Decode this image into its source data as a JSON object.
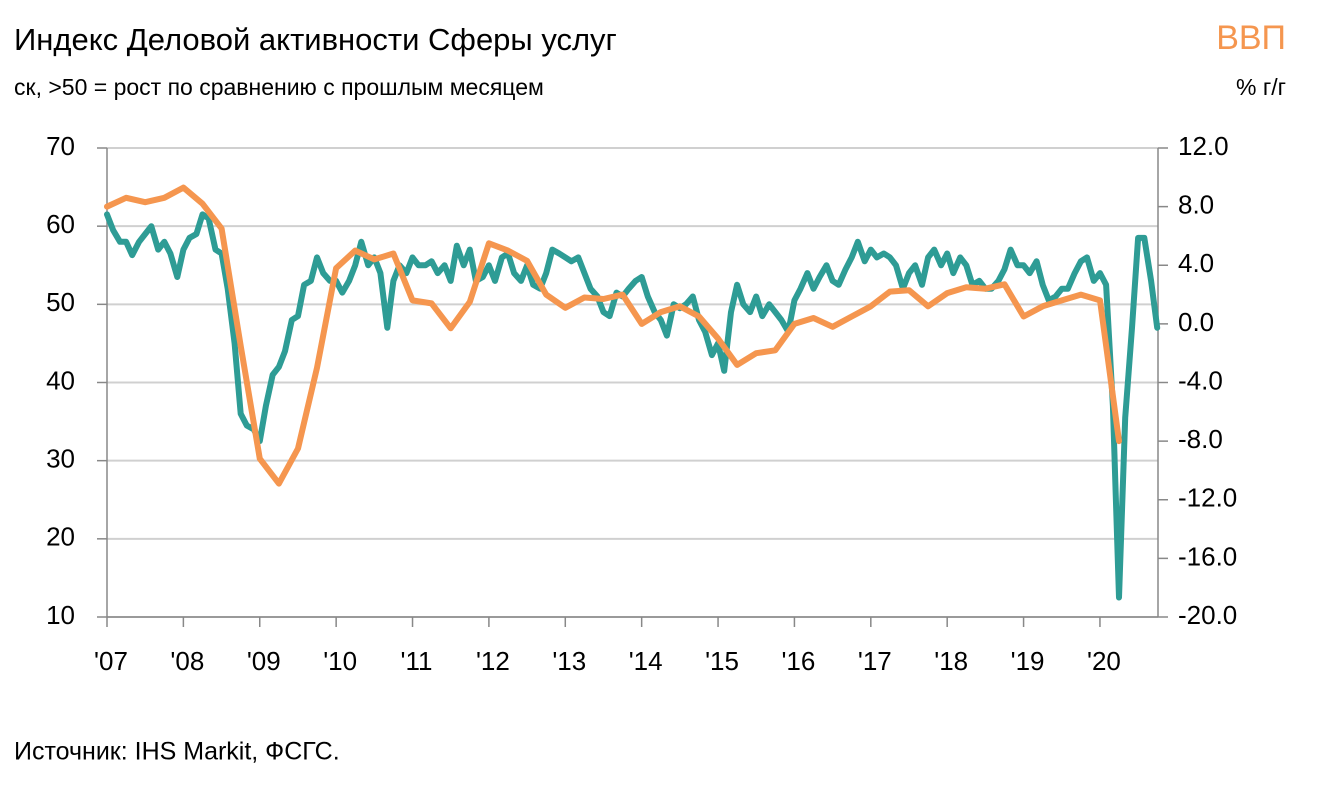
{
  "chart_data": {
    "type": "line",
    "title": "Индекс Деловой активности Сферы услуг",
    "subtitle": "ск, >50 = рост по сравнению с прошлым месяцем",
    "y2_title": "ВВП",
    "y2_subtitle": "% г/г",
    "source": "Источник: IHS Markit, ФСГС.",
    "xlim": [
      2007,
      2020.76
    ],
    "xticks": [
      {
        "value": 2007,
        "label": "'07"
      },
      {
        "value": 2008,
        "label": "'08"
      },
      {
        "value": 2009,
        "label": "'09"
      },
      {
        "value": 2010,
        "label": "'10"
      },
      {
        "value": 2011,
        "label": "'11"
      },
      {
        "value": 2012,
        "label": "'12"
      },
      {
        "value": 2013,
        "label": "'13"
      },
      {
        "value": 2014,
        "label": "'14"
      },
      {
        "value": 2015,
        "label": "'15"
      },
      {
        "value": 2016,
        "label": "'16"
      },
      {
        "value": 2017,
        "label": "'17"
      },
      {
        "value": 2018,
        "label": "'18"
      },
      {
        "value": 2019,
        "label": "'19"
      },
      {
        "value": 2020,
        "label": "'20"
      }
    ],
    "ylim": [
      10,
      70
    ],
    "yticks": [
      10,
      20,
      30,
      40,
      50,
      60,
      70
    ],
    "y2lim": [
      -20,
      12
    ],
    "y2ticks": [
      {
        "value": -20,
        "label": "-20.0"
      },
      {
        "value": -16,
        "label": "-16.0"
      },
      {
        "value": -12,
        "label": "-12.0"
      },
      {
        "value": -8,
        "label": "-8.0"
      },
      {
        "value": -4,
        "label": "-4.0"
      },
      {
        "value": 0,
        "label": "0.0"
      },
      {
        "value": 4,
        "label": "4.0"
      },
      {
        "value": 8,
        "label": "8.0"
      },
      {
        "value": 12,
        "label": "12.0"
      }
    ],
    "grid": true,
    "series": [
      {
        "color": "#2e9c95",
        "axis": "y",
        "x": [
          2007,
          2007.08,
          2007.17,
          2007.25,
          2007.33,
          2007.42,
          2007.5,
          2007.58,
          2007.67,
          2007.75,
          2007.83,
          2007.92,
          2008,
          2008.08,
          2008.17,
          2008.25,
          2008.33,
          2008.42,
          2008.5,
          2008.58,
          2008.67,
          2008.75,
          2008.83,
          2008.92,
          2009,
          2009.08,
          2009.17,
          2009.25,
          2009.33,
          2009.42,
          2009.5,
          2009.58,
          2009.67,
          2009.75,
          2009.83,
          2009.92,
          2010,
          2010.08,
          2010.17,
          2010.25,
          2010.33,
          2010.42,
          2010.5,
          2010.58,
          2010.67,
          2010.75,
          2010.83,
          2010.92,
          2011,
          2011.08,
          2011.17,
          2011.25,
          2011.33,
          2011.42,
          2011.5,
          2011.58,
          2011.67,
          2011.75,
          2011.83,
          2011.92,
          2012,
          2012.08,
          2012.17,
          2012.25,
          2012.33,
          2012.42,
          2012.5,
          2012.58,
          2012.67,
          2012.75,
          2012.83,
          2012.92,
          2013,
          2013.08,
          2013.17,
          2013.25,
          2013.33,
          2013.42,
          2013.5,
          2013.58,
          2013.67,
          2013.75,
          2013.83,
          2013.92,
          2014,
          2014.08,
          2014.17,
          2014.25,
          2014.33,
          2014.42,
          2014.5,
          2014.58,
          2014.67,
          2014.75,
          2014.83,
          2014.92,
          2015,
          2015.08,
          2015.17,
          2015.25,
          2015.33,
          2015.42,
          2015.5,
          2015.58,
          2015.67,
          2015.75,
          2015.83,
          2015.92,
          2016,
          2016.08,
          2016.17,
          2016.25,
          2016.33,
          2016.42,
          2016.5,
          2016.58,
          2016.67,
          2016.75,
          2016.83,
          2016.92,
          2017,
          2017.08,
          2017.17,
          2017.25,
          2017.33,
          2017.42,
          2017.5,
          2017.58,
          2017.67,
          2017.75,
          2017.83,
          2017.92,
          2018,
          2018.08,
          2018.17,
          2018.25,
          2018.33,
          2018.42,
          2018.5,
          2018.58,
          2018.67,
          2018.75,
          2018.83,
          2018.92,
          2019,
          2019.08,
          2019.17,
          2019.25,
          2019.33,
          2019.42,
          2019.5,
          2019.58,
          2019.67,
          2019.75,
          2019.83,
          2019.92,
          2020,
          2020.08,
          2020.17,
          2020.25,
          2020.33,
          2020.42,
          2020.5,
          2020.58,
          2020.67,
          2020.75
        ],
        "values": [
          61.5,
          59.5,
          58,
          58,
          56.3,
          58,
          59,
          60,
          57,
          58,
          56.5,
          53.5,
          57,
          58.5,
          59,
          61.5,
          61,
          57,
          56.5,
          52,
          45,
          36,
          34.5,
          34,
          32.5,
          37,
          41,
          42,
          44,
          48,
          48.5,
          52.5,
          53,
          56,
          54,
          53,
          53,
          51.5,
          53,
          55,
          58,
          55,
          56,
          54,
          47,
          53,
          55,
          54,
          56,
          55,
          55,
          55.5,
          54,
          55,
          53,
          57.5,
          55,
          57,
          53,
          53.5,
          55,
          53,
          56,
          56.5,
          54,
          53,
          55,
          52.5,
          52,
          54,
          57,
          56.5,
          56,
          55.5,
          56,
          54,
          52,
          51,
          49,
          48.5,
          51.5,
          51,
          52,
          53,
          53.5,
          51,
          49,
          48,
          46,
          50,
          49.5,
          50,
          51,
          48,
          46.5,
          43.5,
          45,
          41.5,
          49,
          52.5,
          50,
          49,
          51,
          48.5,
          50,
          49,
          48,
          46.5,
          50.5,
          52,
          54,
          52,
          53.5,
          55,
          53,
          52.5,
          54.5,
          56,
          58,
          55.5,
          57,
          56,
          56.5,
          56,
          55,
          52,
          54,
          55,
          52.5,
          56,
          57,
          55,
          56.5,
          54,
          56,
          55,
          52.5,
          53,
          52,
          52,
          53,
          54.5,
          57,
          55,
          55,
          54,
          55.5,
          52.5,
          50.5,
          51,
          52,
          52,
          54,
          55.5,
          56,
          53,
          54,
          52.5,
          37,
          12.5,
          35.5,
          47,
          58.5,
          58.5,
          53,
          47
        ]
      },
      {
        "color": "#f5964f",
        "axis": "y2",
        "x": [
          2007,
          2007.25,
          2007.5,
          2007.75,
          2008,
          2008.25,
          2008.5,
          2008.75,
          2009,
          2009.25,
          2009.5,
          2009.75,
          2010,
          2010.25,
          2010.5,
          2010.75,
          2011,
          2011.25,
          2011.5,
          2011.75,
          2012,
          2012.25,
          2012.5,
          2012.75,
          2013,
          2013.25,
          2013.5,
          2013.75,
          2014,
          2014.25,
          2014.5,
          2014.75,
          2015,
          2015.25,
          2015.5,
          2015.75,
          2016,
          2016.25,
          2016.5,
          2016.75,
          2017,
          2017.25,
          2017.5,
          2017.75,
          2018,
          2018.25,
          2018.5,
          2018.75,
          2019,
          2019.25,
          2019.5,
          2019.75,
          2020,
          2020.25
        ],
        "values": [
          8.0,
          8.6,
          8.3,
          8.6,
          9.3,
          8.2,
          6.5,
          -1.5,
          -9.2,
          -10.9,
          -8.5,
          -3.0,
          3.8,
          5.0,
          4.4,
          4.8,
          1.6,
          1.4,
          -0.3,
          1.5,
          5.5,
          5.0,
          4.3,
          2.0,
          1.1,
          1.8,
          1.7,
          2.0,
          0.0,
          0.8,
          1.2,
          0.5,
          -1.0,
          -2.8,
          -2.0,
          -1.8,
          0.0,
          0.4,
          -0.2,
          0.5,
          1.2,
          2.2,
          2.3,
          1.2,
          2.1,
          2.5,
          2.4,
          2.7,
          0.5,
          1.2,
          1.6,
          2.0,
          1.6,
          -8.0
        ]
      }
    ]
  }
}
